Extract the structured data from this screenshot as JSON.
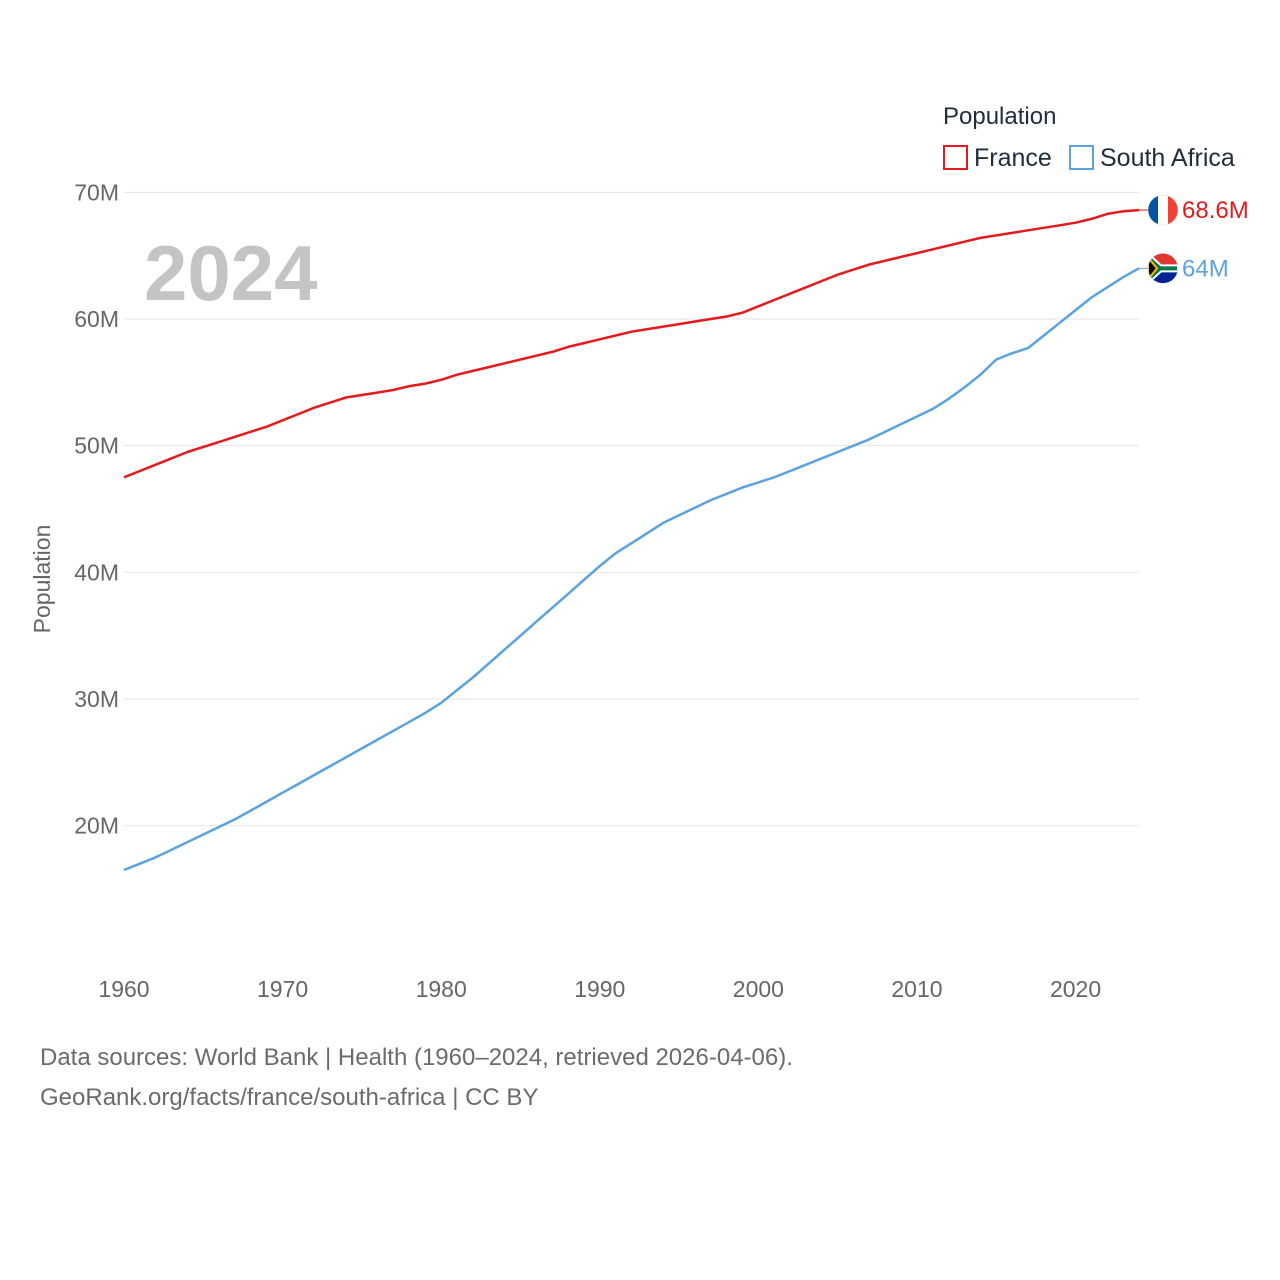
{
  "chart_data": {
    "type": "line",
    "title": "",
    "xlabel": "",
    "ylabel": "Population",
    "xlim": [
      1960,
      2024
    ],
    "ylim": [
      12,
      72
    ],
    "yticks": [
      20,
      30,
      40,
      50,
      60,
      70
    ],
    "ytick_labels": [
      "20M",
      "30M",
      "40M",
      "50M",
      "60M",
      "70M"
    ],
    "xticks": [
      1960,
      1970,
      1980,
      1990,
      2000,
      2010,
      2020
    ],
    "xtick_labels": [
      "1960",
      "1970",
      "1980",
      "1990",
      "2000",
      "2010",
      "2020"
    ],
    "unit": "millions",
    "year_label": "2024",
    "legend": {
      "title": "Population",
      "position": "top-right"
    },
    "x": [
      1960,
      1961,
      1962,
      1963,
      1964,
      1965,
      1966,
      1967,
      1968,
      1969,
      1970,
      1971,
      1972,
      1973,
      1974,
      1975,
      1976,
      1977,
      1978,
      1979,
      1980,
      1981,
      1982,
      1983,
      1984,
      1985,
      1986,
      1987,
      1988,
      1989,
      1990,
      1991,
      1992,
      1993,
      1994,
      1995,
      1996,
      1997,
      1998,
      1999,
      2000,
      2001,
      2002,
      2003,
      2004,
      2005,
      2006,
      2007,
      2008,
      2009,
      2010,
      2011,
      2012,
      2013,
      2014,
      2015,
      2016,
      2017,
      2018,
      2019,
      2020,
      2021,
      2022,
      2023,
      2024
    ],
    "series": [
      {
        "name": "France",
        "color": "#e41a1c",
        "end_label": "68.6M",
        "flag": "france-flag",
        "values": [
          47.5,
          48.0,
          48.5,
          49.0,
          49.5,
          49.9,
          50.3,
          50.7,
          51.1,
          51.5,
          52.0,
          52.5,
          53.0,
          53.4,
          53.8,
          54.0,
          54.2,
          54.4,
          54.7,
          54.9,
          55.2,
          55.6,
          55.9,
          56.2,
          56.5,
          56.8,
          57.1,
          57.4,
          57.8,
          58.1,
          58.4,
          58.7,
          59.0,
          59.2,
          59.4,
          59.6,
          59.8,
          60.0,
          60.2,
          60.5,
          61.0,
          61.5,
          62.0,
          62.5,
          63.0,
          63.5,
          63.9,
          64.3,
          64.6,
          64.9,
          65.2,
          65.5,
          65.8,
          66.1,
          66.4,
          66.6,
          66.8,
          67.0,
          67.2,
          67.4,
          67.6,
          67.9,
          68.3,
          68.5,
          68.6
        ]
      },
      {
        "name": "South Africa",
        "color": "#5aa2e0",
        "end_label": "64M",
        "flag": "south-africa-flag",
        "values": [
          16.5,
          17.0,
          17.5,
          18.1,
          18.7,
          19.3,
          19.9,
          20.5,
          21.2,
          21.9,
          22.6,
          23.3,
          24.0,
          24.7,
          25.4,
          26.1,
          26.8,
          27.5,
          28.2,
          28.9,
          29.7,
          30.7,
          31.7,
          32.8,
          33.9,
          35.0,
          36.1,
          37.2,
          38.3,
          39.4,
          40.5,
          41.5,
          42.3,
          43.1,
          43.9,
          44.5,
          45.1,
          45.7,
          46.2,
          46.7,
          47.1,
          47.5,
          48.0,
          48.5,
          49.0,
          49.5,
          50.0,
          50.5,
          51.1,
          51.7,
          52.3,
          52.9,
          53.7,
          54.6,
          55.6,
          56.8,
          57.3,
          57.7,
          58.7,
          59.7,
          60.7,
          61.7,
          62.5,
          63.3,
          64.0
        ]
      }
    ]
  },
  "footer": {
    "line1": "Data sources: World Bank | Health (1960–2024, retrieved 2026-04-06).",
    "line2": "GeoRank.org/facts/france/south-africa | CC BY"
  }
}
